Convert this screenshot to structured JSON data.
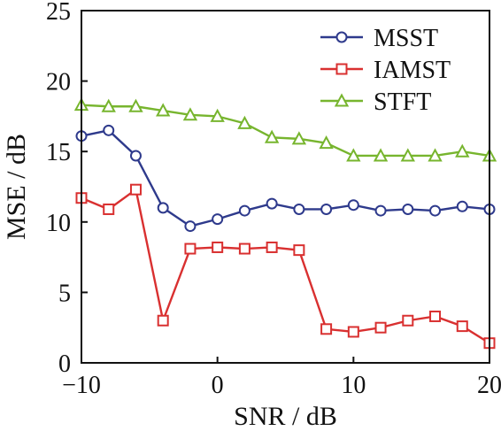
{
  "chart_data": {
    "type": "line",
    "title": "",
    "xlabel": "SNR / dB",
    "ylabel": "MSE / dB",
    "xlim": [
      -10,
      20
    ],
    "ylim": [
      0,
      25
    ],
    "xticks": [
      -10,
      0,
      10,
      20
    ],
    "yticks": [
      0,
      5,
      10,
      15,
      20,
      25
    ],
    "xtick_labels": [
      "−10",
      "0",
      "10",
      "20"
    ],
    "ytick_labels": [
      "0",
      "5",
      "10",
      "15",
      "20",
      "25"
    ],
    "grid": false,
    "legend_position": "top-right",
    "x": [
      -10,
      -8,
      -6,
      -4,
      -2,
      0,
      2,
      4,
      6,
      8,
      10,
      12,
      14,
      16,
      18,
      20
    ],
    "series": [
      {
        "name": "MSST",
        "marker": "circle",
        "color": "#2e3a8c",
        "values": [
          16.1,
          16.5,
          14.7,
          11.0,
          9.7,
          10.2,
          10.8,
          11.3,
          10.9,
          10.9,
          11.2,
          10.8,
          10.9,
          10.8,
          11.1,
          10.9
        ]
      },
      {
        "name": "IAMST",
        "marker": "square",
        "color": "#d93030",
        "values": [
          11.7,
          10.9,
          12.3,
          3.0,
          8.1,
          8.2,
          8.1,
          8.2,
          8.0,
          2.4,
          2.2,
          2.5,
          3.0,
          3.3,
          2.6,
          1.4
        ]
      },
      {
        "name": "STFT",
        "marker": "triangle",
        "color": "#77b52e",
        "values": [
          18.3,
          18.2,
          18.2,
          17.9,
          17.6,
          17.5,
          17.0,
          16.0,
          15.9,
          15.6,
          14.7,
          14.7,
          14.7,
          14.7,
          15.0,
          14.7
        ]
      }
    ]
  }
}
